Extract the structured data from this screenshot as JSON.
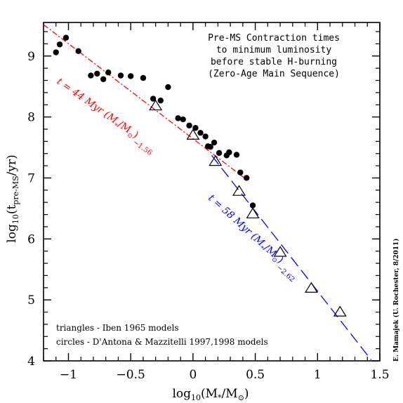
{
  "chart_data": {
    "type": "scatter",
    "title_lines": [
      "Pre-MS Contraction times",
      "to minimum luminosity",
      "before stable H-burning",
      "(Zero-Age Main Sequence)"
    ],
    "xlabel": {
      "main": "log",
      "sub": "10",
      "rest": "(M",
      "star": "*",
      "mid": "/M",
      "sun": "⊙",
      "end": ")"
    },
    "ylabel": {
      "main": "log",
      "sub": "10",
      "open": "(t",
      "sub2": "pre-MS",
      "end": "/yr)"
    },
    "xlim": [
      -1.2,
      1.5
    ],
    "ylim": [
      4,
      9.55
    ],
    "x_ticks": [
      -1,
      -0.5,
      0,
      0.5,
      1,
      1.5
    ],
    "x_tick_labels": [
      "−1",
      "−0.5",
      "0",
      "0.5",
      "1",
      "1.5"
    ],
    "y_ticks": [
      4,
      5,
      6,
      7,
      8,
      9
    ],
    "y_tick_labels": [
      "4",
      "5",
      "6",
      "7",
      "8",
      "9"
    ],
    "series": [
      {
        "name": "circles - D'Antona & Mazzitelli 1997,1998 models",
        "marker": "filled-circle",
        "color": "#000000",
        "x": [
          -1.1,
          -1.07,
          -1.02,
          -0.92,
          -0.82,
          -0.77,
          -0.72,
          -0.68,
          -0.58,
          -0.5,
          -0.4,
          -0.32,
          -0.26,
          -0.2,
          -0.12,
          -0.08,
          -0.03,
          0.02,
          0.06,
          0.1,
          0.12,
          0.14,
          0.17,
          0.21,
          0.27,
          0.29,
          0.35,
          0.38,
          0.43,
          0.48
        ],
        "y": [
          9.06,
          9.19,
          9.3,
          9.08,
          8.68,
          8.71,
          8.62,
          8.73,
          8.68,
          8.67,
          8.64,
          8.3,
          8.27,
          8.49,
          7.98,
          7.96,
          7.86,
          7.82,
          7.74,
          7.68,
          7.52,
          7.51,
          7.58,
          7.41,
          7.37,
          7.42,
          7.38,
          7.09,
          7.0,
          6.55
        ]
      },
      {
        "name": "triangles - Iben 1965 models",
        "marker": "open-triangle",
        "color": "#000000",
        "x": [
          -0.3,
          0.0,
          0.18,
          0.37,
          0.48,
          0.7,
          0.95,
          1.18
        ],
        "y": [
          8.18,
          7.7,
          7.27,
          6.78,
          6.41,
          5.78,
          5.19,
          4.8
        ]
      }
    ],
    "fits": [
      {
        "label_lines": [
          "t = 44 Myr (M*/M⊙)",
          "−1.56"
        ],
        "prefix": "t = 44 Myr (M",
        "star": "*",
        "mid": "/M",
        "sun": "⊙",
        "end": ")",
        "exponent": "−1.56",
        "color": "#ff0000",
        "style": "dash-dot",
        "amplitude_log": 7.643,
        "slope": -1.56,
        "x_range": [
          -1.2,
          0.45
        ]
      },
      {
        "prefix": "t = 58 Myr (M",
        "star": "*",
        "mid": "/M",
        "sun": "⊙",
        "end": ")",
        "exponent": "−2.62",
        "color": "#0000ff",
        "style": "long-dash",
        "amplitude_log": 7.763,
        "slope": -2.62,
        "x_range": [
          0.15,
          1.43
        ]
      }
    ],
    "legend_lines": [
      "triangles - Iben 1965 models",
      "circles - D'Antona & Mazzitelli 1997,1998 models"
    ],
    "credit": "E. Mamajek (U. Rochester, 8/2011)",
    "grid": false,
    "colors": {
      "axes": "#000000",
      "fit1": "#ff0000",
      "fit2": "#0000ff"
    }
  }
}
